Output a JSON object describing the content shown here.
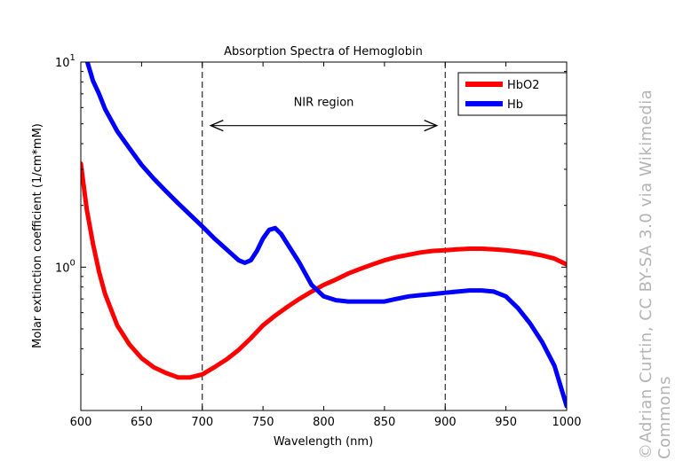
{
  "chart_data": {
    "type": "line",
    "title": "Absorption Spectra of Hemoglobin",
    "xlabel": "Wavelength (nm)",
    "ylabel": "Molar extinction coefficient (1/cm*mM)",
    "xlim": [
      600,
      1000
    ],
    "ylim": [
      0.2,
      10
    ],
    "yscale": "log",
    "x_ticks": [
      600,
      650,
      700,
      750,
      800,
      850,
      900,
      950,
      1000
    ],
    "x_tick_labels": [
      "600",
      "650",
      "700",
      "750",
      "800",
      "850",
      "900",
      "950",
      "1000"
    ],
    "y_ticks": [
      {
        "value": 1,
        "base": "10",
        "exp": "0"
      },
      {
        "value": 10,
        "base": "10",
        "exp": "1"
      }
    ],
    "legend_position": "top-right",
    "grid": false,
    "series": [
      {
        "name": "HbO2",
        "color": "#ff0000",
        "x": [
          600,
          605,
          610,
          615,
          620,
          630,
          640,
          650,
          660,
          670,
          680,
          690,
          700,
          710,
          720,
          730,
          740,
          750,
          760,
          770,
          780,
          790,
          800,
          810,
          820,
          830,
          840,
          850,
          860,
          870,
          880,
          890,
          900,
          910,
          920,
          930,
          940,
          950,
          960,
          970,
          980,
          990,
          1000
        ],
        "y": [
          3.2,
          1.9,
          1.3,
          0.95,
          0.74,
          0.52,
          0.42,
          0.36,
          0.325,
          0.305,
          0.29,
          0.29,
          0.3,
          0.325,
          0.355,
          0.395,
          0.45,
          0.52,
          0.58,
          0.64,
          0.7,
          0.76,
          0.82,
          0.87,
          0.93,
          0.98,
          1.03,
          1.08,
          1.12,
          1.15,
          1.18,
          1.2,
          1.21,
          1.22,
          1.23,
          1.23,
          1.22,
          1.21,
          1.19,
          1.17,
          1.14,
          1.1,
          1.03
        ]
      },
      {
        "name": "Hb",
        "color": "#0000ff",
        "x": [
          605,
          610,
          615,
          620,
          630,
          640,
          650,
          660,
          670,
          680,
          690,
          700,
          710,
          720,
          730,
          735,
          740,
          745,
          750,
          755,
          760,
          765,
          770,
          780,
          790,
          800,
          810,
          820,
          830,
          840,
          850,
          860,
          870,
          880,
          890,
          900,
          910,
          920,
          930,
          940,
          950,
          960,
          970,
          980,
          990,
          1000
        ],
        "y": [
          10.2,
          8.1,
          7.0,
          5.9,
          4.6,
          3.8,
          3.15,
          2.7,
          2.35,
          2.05,
          1.8,
          1.58,
          1.38,
          1.22,
          1.08,
          1.05,
          1.08,
          1.2,
          1.38,
          1.52,
          1.55,
          1.45,
          1.3,
          1.05,
          0.82,
          0.72,
          0.69,
          0.68,
          0.68,
          0.68,
          0.68,
          0.7,
          0.72,
          0.73,
          0.74,
          0.75,
          0.76,
          0.77,
          0.77,
          0.76,
          0.72,
          0.63,
          0.53,
          0.43,
          0.33,
          0.21
        ]
      }
    ],
    "annotations": {
      "vlines": [
        700,
        900
      ],
      "arrow": {
        "x_start": 707,
        "x_end": 893,
        "y": 4.9
      },
      "region_label": {
        "text": "NIR region",
        "x": 800,
        "y": 6.1
      }
    }
  },
  "credit": {
    "text": "©Adrian Curtin, CC BY-SA 3.0 via Wikimedia Commons"
  }
}
